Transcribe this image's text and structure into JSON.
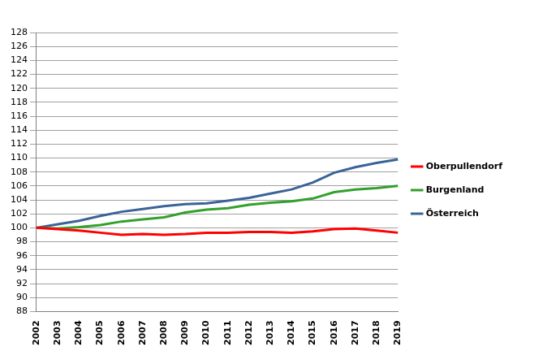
{
  "chart_data": {
    "type": "line",
    "categories": [
      "2002",
      "2003",
      "2004",
      "2005",
      "2006",
      "2007",
      "2008",
      "2009",
      "2010",
      "2011",
      "2012",
      "2013",
      "2014",
      "2015",
      "2016",
      "2017",
      "2018",
      "2019"
    ],
    "series": [
      {
        "name": "Oberpullendorf",
        "color": "#ff0000",
        "values": [
          100,
          99.8,
          99.6,
          99.3,
          99.0,
          99.1,
          99.0,
          99.1,
          99.3,
          99.3,
          99.4,
          99.4,
          99.3,
          99.5,
          99.8,
          99.9,
          99.6,
          99.3
        ]
      },
      {
        "name": "Burgenland",
        "color": "#33a02c",
        "values": [
          100,
          99.9,
          100.1,
          100.4,
          100.9,
          101.2,
          101.5,
          102.2,
          102.6,
          102.8,
          103.3,
          103.6,
          103.8,
          104.2,
          105.1,
          105.5,
          105.7,
          106.0
        ]
      },
      {
        "name": "Österreich",
        "color": "#3a6398",
        "values": [
          100,
          100.5,
          101.0,
          101.7,
          102.3,
          102.7,
          103.1,
          103.4,
          103.5,
          103.9,
          104.3,
          104.9,
          105.5,
          106.5,
          107.9,
          108.7,
          109.3,
          109.8
        ]
      }
    ],
    "ylim": [
      88,
      128
    ],
    "yticks": [
      88,
      90,
      92,
      94,
      96,
      98,
      100,
      102,
      104,
      106,
      108,
      110,
      112,
      114,
      116,
      118,
      120,
      122,
      124,
      126,
      128
    ],
    "grid": true,
    "legend": "right"
  }
}
